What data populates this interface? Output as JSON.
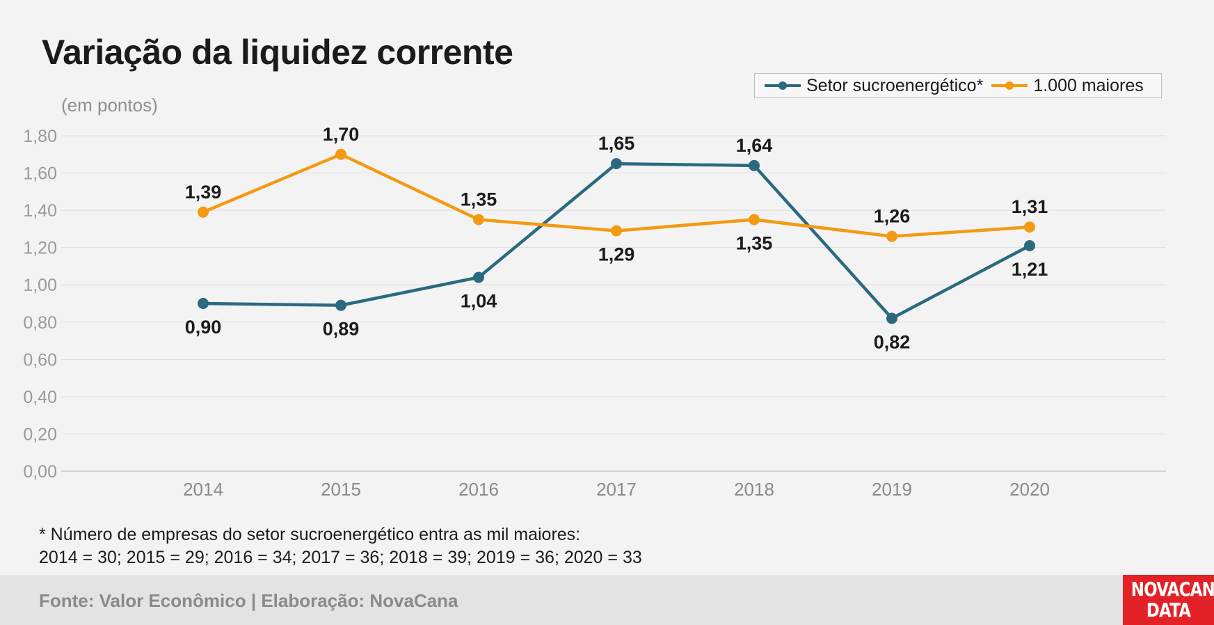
{
  "title": "Variação da liquidez corrente",
  "unit": "(em pontos)",
  "footnote_line1": "* Número de empresas do setor sucroenergético entra as mil maiores:",
  "footnote_line2": "2014 = 30; 2015 = 29; 2016 = 34; 2017 = 36; 2018 = 39; 2019 = 36; 2020 = 33",
  "source": "Fonte: Valor Econômico | Elaboração: NovaCana",
  "logo": {
    "line1": "NOVACANA",
    "line2": "DATA"
  },
  "colors": {
    "series1": "#2b6a7e",
    "series2": "#f39a12",
    "grid": "#dcdcdc",
    "tick": "#9a9a9a"
  },
  "chart_data": {
    "type": "line",
    "x": [
      "2014",
      "2015",
      "2016",
      "2017",
      "2018",
      "2019",
      "2020"
    ],
    "series": [
      {
        "name": "Setor sucroenergético*",
        "values": [
          0.9,
          0.89,
          1.04,
          1.65,
          1.64,
          0.82,
          1.21
        ],
        "labels": [
          "0,90",
          "0,89",
          "1,04",
          "1,65",
          "1,64",
          "0,82",
          "1,21"
        ],
        "label_pos": [
          "below",
          "below",
          "below",
          "above",
          "above",
          "below",
          "below"
        ]
      },
      {
        "name": "1.000 maiores",
        "values": [
          1.39,
          1.7,
          1.35,
          1.29,
          1.35,
          1.26,
          1.31
        ],
        "labels": [
          "1,39",
          "1,70",
          "1,35",
          "1,29",
          "1,35",
          "1,26",
          "1,31"
        ],
        "label_pos": [
          "above",
          "above",
          "above",
          "below",
          "below",
          "above",
          "above"
        ]
      }
    ],
    "yticks": [
      "0,00",
      "0,20",
      "0,40",
      "0,60",
      "0,80",
      "1,00",
      "1,20",
      "1,40",
      "1,60",
      "1,80"
    ],
    "ylim": [
      0,
      1.8
    ],
    "grid": true,
    "legend": "top-right"
  }
}
